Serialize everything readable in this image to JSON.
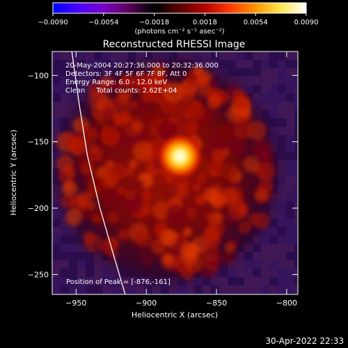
{
  "footer": {
    "timestamp": "30-Apr-2022 22:33"
  },
  "colorbar": {
    "min": -0.009,
    "max": 0.009,
    "tick_labels": [
      "−0.0090",
      "−0.0054",
      "−0.0018",
      "0.0018",
      "0.0054",
      "0.0090"
    ],
    "tick_values": [
      -0.009,
      -0.0054,
      -0.0018,
      0.0018,
      0.0054,
      0.009
    ],
    "unit_label": "(photons cm⁻² s⁻¹ asec⁻²)",
    "colors": [
      "#0000ff",
      "#4b00ff",
      "#7a00c8",
      "#5a005a",
      "#000000",
      "#5a0000",
      "#b40000",
      "#ff3c00",
      "#ff9600",
      "#ffe650",
      "#ffffff"
    ]
  },
  "chart_data": {
    "type": "heatmap",
    "title": "Reconstructed RHESSI Image",
    "xlabel": "Heliocentric X (arcsec)",
    "ylabel": "Heliocentric Y (arcsec)",
    "xlim": [
      -967,
      -792
    ],
    "ylim": [
      -265,
      -82
    ],
    "x_ticks": [
      -950,
      -900,
      -850,
      -800
    ],
    "y_ticks": [
      -250,
      -200,
      -150,
      -100
    ],
    "x_tick_labels": [
      "−950",
      "−900",
      "−850",
      "−800"
    ],
    "y_tick_labels": [
      "−250",
      "−200",
      "−150",
      "−100"
    ],
    "annotations": [
      "20-May-2004 20:27:36.000 to 20:32:36.000",
      "Detectors: 3F 4F 5F 6F 7F 8F, Att 0",
      "Energy Range: 6.0 - 12.0 keV",
      "Clean     Total counts: 2.62E+04"
    ],
    "peak_label": "Position of Peak = [-876,-161]",
    "peak": {
      "x": -876,
      "y": -161,
      "value": 0.009
    },
    "solar_limb": [
      [
        -953,
        -82
      ],
      [
        -948,
        -120
      ],
      [
        -942,
        -160
      ],
      [
        -933,
        -200
      ],
      [
        -922,
        -240
      ],
      [
        -915,
        -265
      ]
    ]
  }
}
